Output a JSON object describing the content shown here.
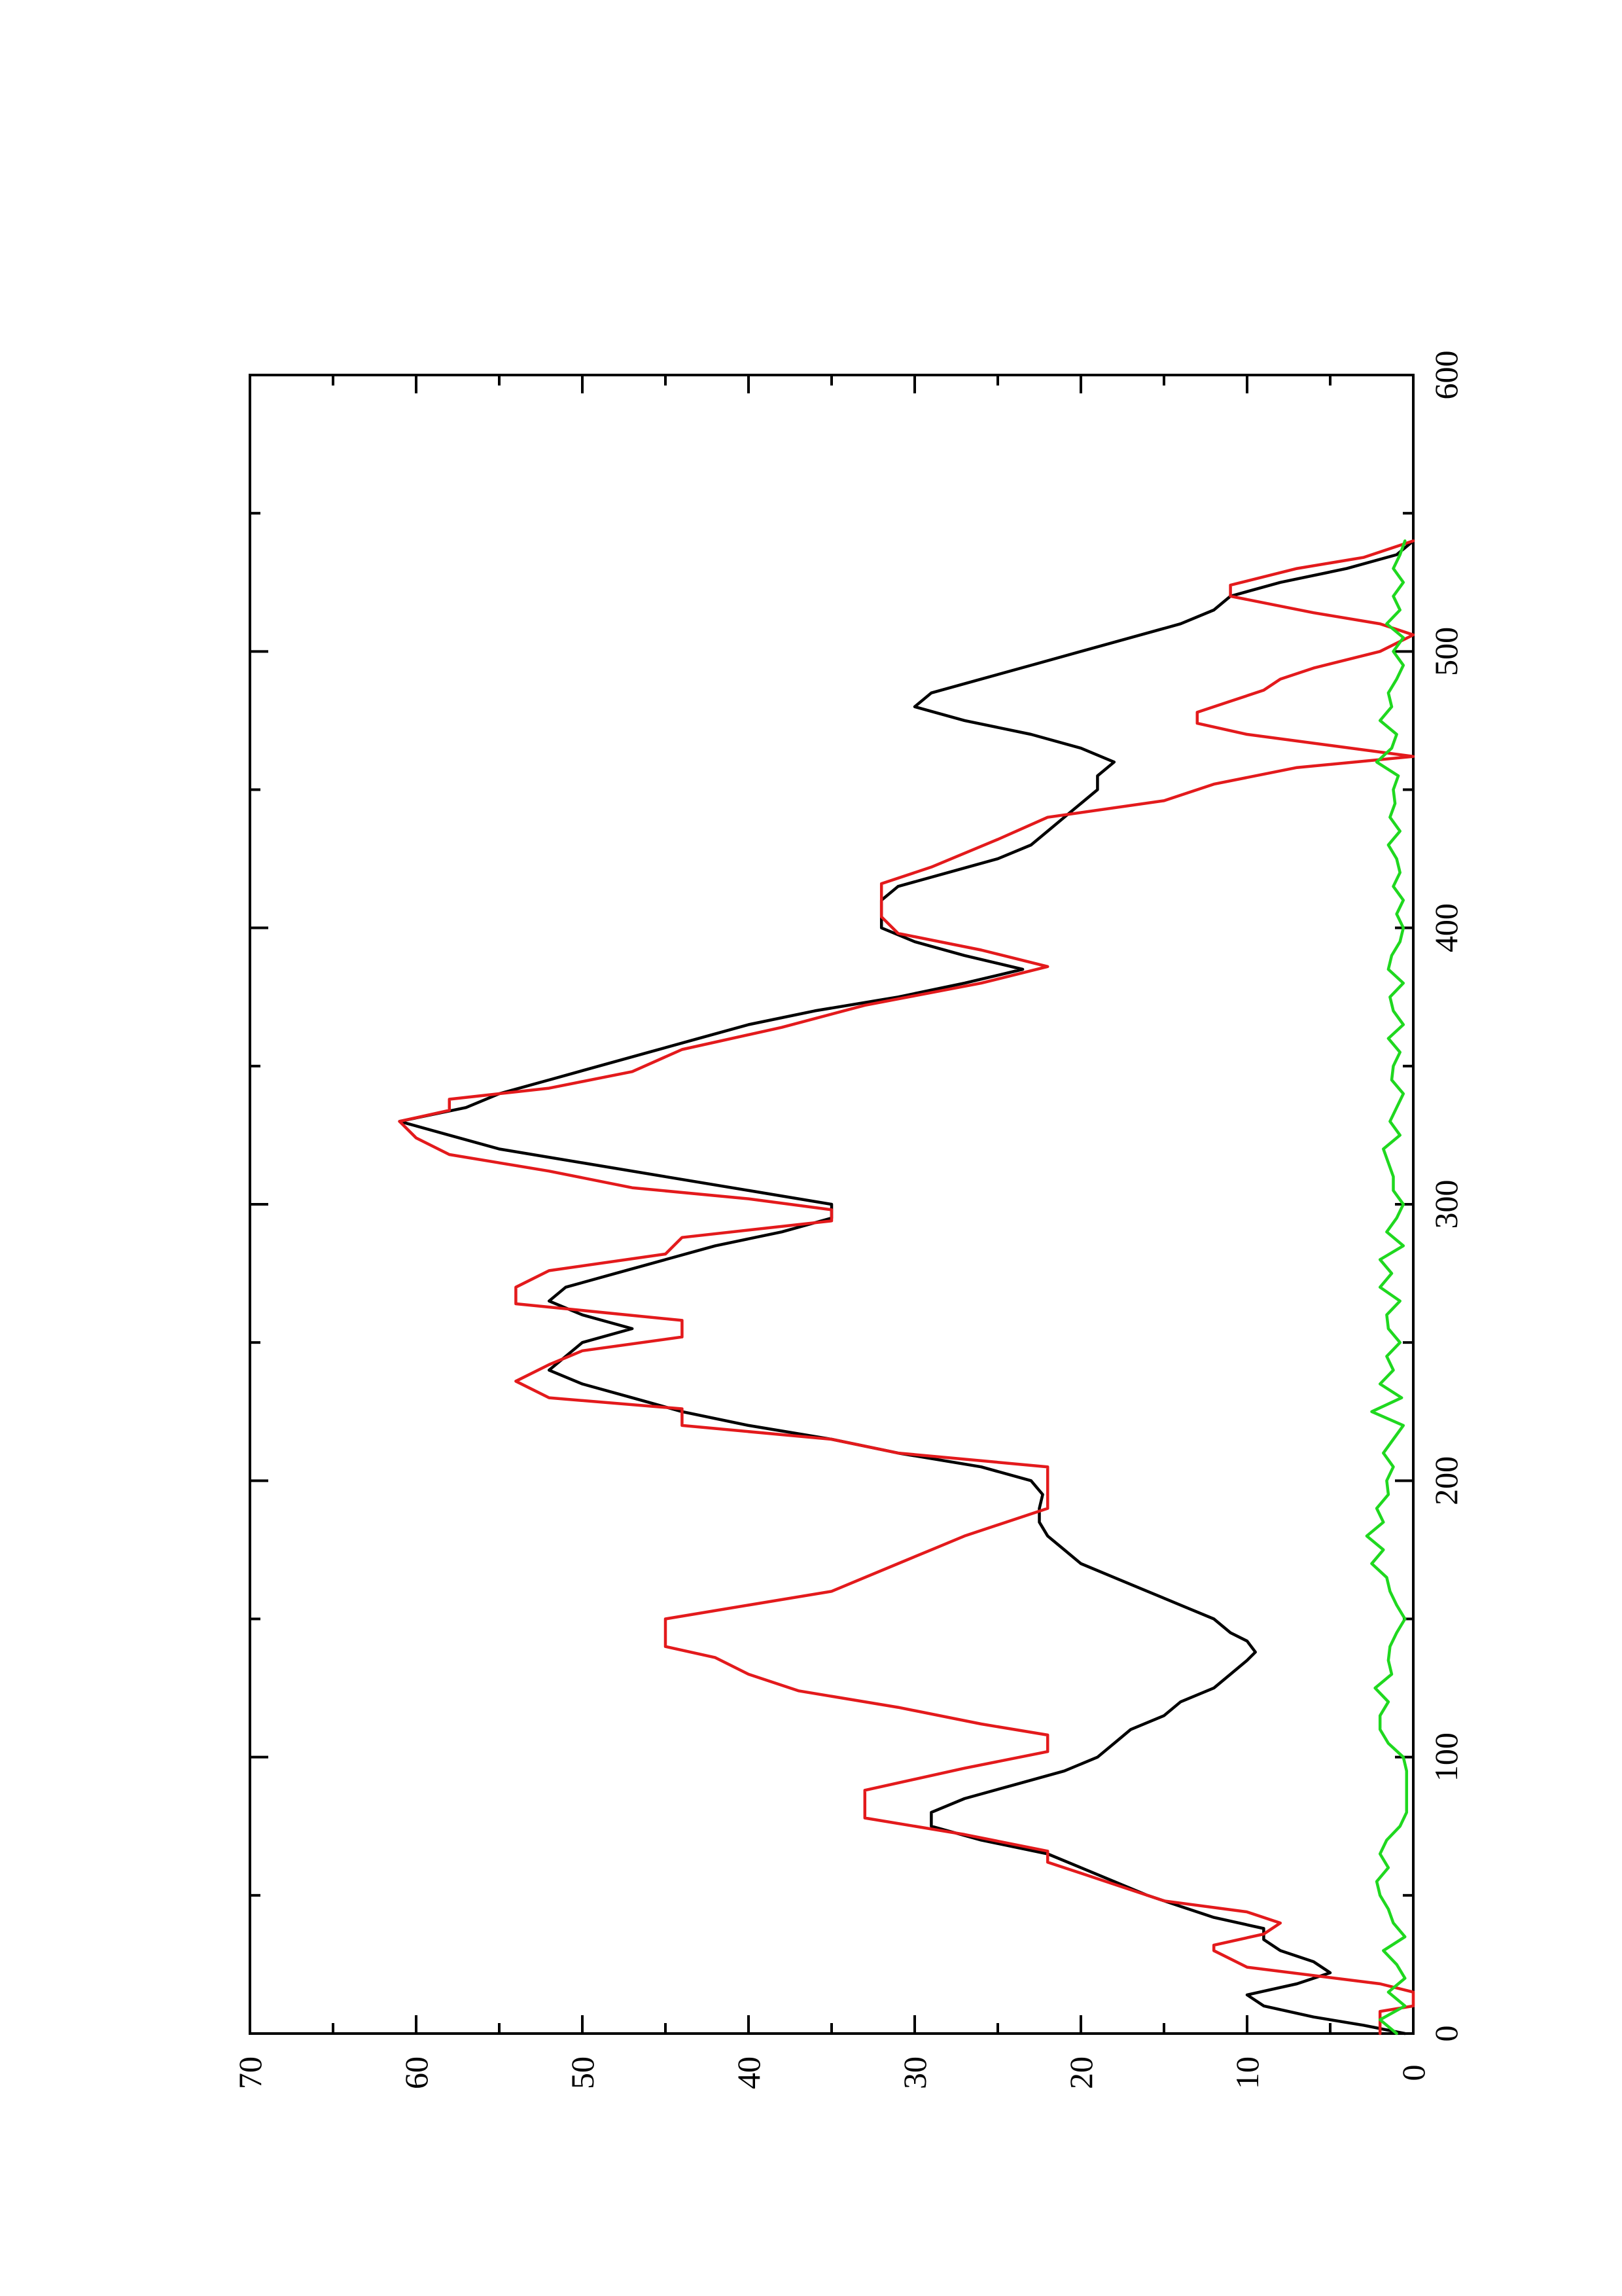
{
  "chart_data": {
    "type": "line",
    "orientation": "rotated 90 degrees counter-clockwise",
    "xlim": [
      0,
      600
    ],
    "ylim": [
      0,
      70
    ],
    "x_ticks": [
      0,
      100,
      200,
      300,
      400,
      500,
      600
    ],
    "x_minor_ticks": [
      50,
      150,
      250,
      350,
      450,
      550
    ],
    "y_ticks": [
      0,
      10,
      20,
      30,
      40,
      50,
      60,
      70
    ],
    "y_minor_ticks": [
      5,
      15,
      25,
      35,
      45,
      55,
      65
    ],
    "title": "",
    "xlabel": "",
    "ylabel": "",
    "grid": false,
    "legend": "none",
    "colors": {
      "black": "#000000",
      "red": "#e31a1c",
      "green": "#1fd81f"
    },
    "series": [
      {
        "color": "#000000",
        "x": [
          0,
          3,
          6,
          10,
          14,
          18,
          22,
          26,
          30,
          34,
          38,
          42,
          46,
          50,
          55,
          60,
          65,
          70,
          75,
          80,
          85,
          90,
          95,
          100,
          105,
          110,
          115,
          120,
          125,
          130,
          135,
          138,
          142,
          145,
          150,
          155,
          160,
          165,
          170,
          175,
          180,
          185,
          190,
          195,
          200,
          205,
          210,
          215,
          220,
          225,
          230,
          235,
          240,
          245,
          250,
          255,
          260,
          265,
          270,
          275,
          280,
          285,
          290,
          295,
          300,
          305,
          310,
          315,
          320,
          325,
          330,
          335,
          340,
          345,
          350,
          355,
          360,
          365,
          370,
          375,
          380,
          385,
          390,
          395,
          400,
          405,
          410,
          415,
          420,
          425,
          430,
          435,
          440,
          445,
          450,
          455,
          460,
          465,
          470,
          475,
          480,
          485,
          490,
          495,
          500,
          505,
          510,
          515,
          520,
          525,
          530,
          535,
          540
        ],
        "values": [
          0.5,
          3,
          6,
          9,
          10,
          7,
          5,
          6,
          8,
          9,
          9,
          12,
          14,
          16,
          18,
          20,
          22,
          26,
          29,
          29,
          27,
          24,
          21,
          19,
          18,
          17,
          15,
          14,
          12,
          11,
          10,
          9.5,
          10,
          11,
          12,
          14,
          16,
          18,
          20,
          21,
          22,
          22.5,
          22.5,
          22.3,
          23,
          26,
          31,
          35,
          40,
          44,
          47,
          50,
          52,
          51,
          50,
          47,
          50,
          52,
          51,
          48,
          45,
          42,
          38,
          35,
          35,
          40,
          45,
          50,
          55,
          58,
          61,
          57,
          55,
          52,
          49,
          46,
          43,
          40,
          36,
          31,
          27,
          23.5,
          27,
          30,
          32,
          32,
          32,
          31,
          28,
          25,
          23,
          22,
          21,
          20,
          19,
          19,
          18,
          20,
          23,
          27,
          30,
          29,
          26,
          23,
          20,
          17,
          14,
          12,
          11,
          8,
          4,
          1,
          0
        ]
      },
      {
        "color": "#e31a1c",
        "x": [
          0,
          8,
          10,
          15,
          18,
          24,
          30,
          32,
          36,
          40,
          44,
          48,
          52,
          58,
          62,
          66,
          72,
          78,
          84,
          88,
          96,
          102,
          105,
          108,
          112,
          118,
          124,
          130,
          136,
          140,
          146,
          150,
          155,
          160,
          170,
          175,
          180,
          190,
          196,
          205,
          210,
          215,
          220,
          226,
          230,
          236,
          242,
          247,
          252,
          258,
          264,
          270,
          276,
          282,
          288,
          294,
          298,
          302,
          306,
          312,
          318,
          324,
          330,
          334,
          338,
          342,
          348,
          356,
          364,
          372,
          380,
          386,
          392,
          398,
          404,
          410,
          416,
          422,
          432,
          440,
          446,
          452,
          458,
          462,
          466,
          470,
          474,
          478,
          482,
          486,
          490,
          494,
          500,
          506,
          510,
          514,
          520,
          524,
          530,
          534,
          540
        ],
        "values": [
          2,
          2,
          0,
          0,
          2,
          10,
          12,
          12,
          9,
          8,
          10,
          15,
          17,
          20,
          22,
          22,
          27,
          33,
          33,
          33,
          27,
          22,
          22,
          22,
          26,
          31,
          37,
          40,
          42,
          45,
          45,
          45,
          40,
          35,
          31,
          29,
          27,
          22,
          22,
          22,
          31,
          35,
          44,
          44,
          52,
          54,
          52,
          50,
          44,
          44,
          54,
          54,
          52,
          45,
          44,
          35,
          35,
          40,
          47,
          52,
          58,
          60,
          61,
          58,
          58,
          52,
          47,
          44,
          38,
          33,
          26,
          22,
          26,
          31,
          32,
          32,
          32,
          29,
          25,
          22,
          15,
          12,
          7,
          0,
          5,
          10,
          13,
          13,
          11,
          9,
          8,
          6,
          2,
          0,
          2,
          6,
          11,
          11,
          7,
          3,
          0
        ]
      },
      {
        "color": "#1fd81f",
        "x": [
          0,
          5,
          10,
          15,
          20,
          25,
          30,
          35,
          40,
          45,
          50,
          55,
          60,
          65,
          70,
          75,
          80,
          85,
          90,
          95,
          100,
          105,
          110,
          115,
          120,
          125,
          130,
          135,
          140,
          145,
          150,
          155,
          160,
          165,
          170,
          175,
          180,
          185,
          190,
          195,
          200,
          205,
          210,
          215,
          220,
          225,
          230,
          235,
          240,
          245,
          250,
          255,
          260,
          265,
          270,
          275,
          280,
          285,
          290,
          295,
          300,
          305,
          310,
          315,
          320,
          325,
          330,
          335,
          340,
          345,
          350,
          355,
          360,
          365,
          370,
          375,
          380,
          385,
          390,
          395,
          400,
          405,
          410,
          415,
          420,
          425,
          430,
          435,
          440,
          445,
          450,
          455,
          460,
          465,
          470,
          475,
          480,
          485,
          490,
          495,
          500,
          505,
          510,
          515,
          520,
          525,
          530,
          535,
          540
        ],
        "values": [
          1,
          2,
          0.5,
          1.5,
          0.5,
          1,
          1.8,
          0.5,
          1.2,
          1.5,
          2,
          2.2,
          1.5,
          2,
          1.6,
          0.8,
          0.4,
          0.4,
          0.4,
          0.4,
          0.6,
          1.5,
          2,
          2,
          1.5,
          2.3,
          1.3,
          1.5,
          1.4,
          1,
          0.5,
          1,
          1.4,
          1.6,
          2.5,
          1.8,
          2.8,
          1.8,
          2.2,
          1.5,
          1.6,
          1.2,
          1.8,
          1.2,
          0.6,
          2.5,
          0.7,
          2,
          1.2,
          1.6,
          0.8,
          1.5,
          1.6,
          0.8,
          2,
          1.3,
          2,
          0.6,
          1.6,
          1,
          0.6,
          1.2,
          1.2,
          1.5,
          1.8,
          0.8,
          1.4,
          1,
          0.6,
          1.3,
          1.2,
          0.8,
          1.5,
          0.6,
          1.2,
          1.4,
          0.6,
          1.5,
          1.3,
          0.8,
          0.6,
          1,
          0.6,
          1.2,
          0.8,
          1,
          1.5,
          0.8,
          1.4,
          1.1,
          1.2,
          0.9,
          2.2,
          1.3,
          1,
          2,
          1.3,
          1.5,
          1,
          0.6,
          1.2,
          0.6,
          1.6,
          0.8,
          1.2,
          0.6,
          1.2,
          0.8,
          0.5
        ]
      }
    ]
  }
}
